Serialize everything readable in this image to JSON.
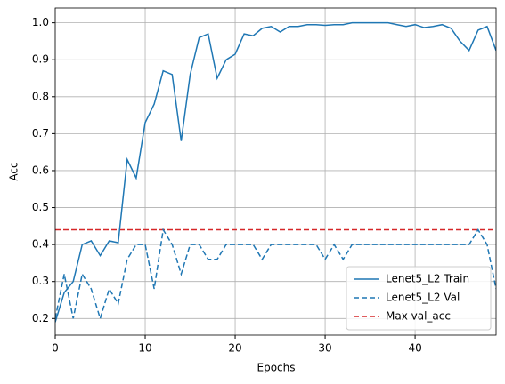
{
  "chart_data": {
    "type": "line",
    "xlabel": "Epochs",
    "ylabel": "Acc",
    "x": [
      0,
      1,
      2,
      3,
      4,
      5,
      6,
      7,
      8,
      9,
      10,
      11,
      12,
      13,
      14,
      15,
      16,
      17,
      18,
      19,
      20,
      21,
      22,
      23,
      24,
      25,
      26,
      27,
      28,
      29,
      30,
      31,
      32,
      33,
      34,
      35,
      36,
      37,
      38,
      39,
      40,
      41,
      42,
      43,
      44,
      45,
      46,
      47,
      48,
      49
    ],
    "series": [
      {
        "name": "Lenet5_L2 Train",
        "color": "#1f77b4",
        "dash": "solid",
        "values": [
          0.19,
          0.27,
          0.3,
          0.4,
          0.41,
          0.37,
          0.41,
          0.405,
          0.63,
          0.58,
          0.73,
          0.78,
          0.87,
          0.86,
          0.68,
          0.86,
          0.96,
          0.97,
          0.85,
          0.9,
          0.915,
          0.97,
          0.965,
          0.985,
          0.99,
          0.975,
          0.99,
          0.99,
          0.995,
          0.995,
          0.993,
          0.995,
          0.995,
          1.0,
          1.0,
          1.0,
          1.0,
          1.0,
          0.995,
          0.99,
          0.995,
          0.987,
          0.99,
          0.995,
          0.985,
          0.95,
          0.925,
          0.98,
          0.99,
          0.925
        ]
      },
      {
        "name": "Lenet5_L2 Val",
        "color": "#1f77b4",
        "dash": "dashed",
        "values": [
          0.2,
          0.32,
          0.2,
          0.32,
          0.28,
          0.2,
          0.28,
          0.24,
          0.36,
          0.4,
          0.4,
          0.28,
          0.44,
          0.4,
          0.32,
          0.4,
          0.4,
          0.36,
          0.36,
          0.4,
          0.4,
          0.4,
          0.4,
          0.36,
          0.4,
          0.4,
          0.4,
          0.4,
          0.4,
          0.4,
          0.36,
          0.4,
          0.36,
          0.4,
          0.4,
          0.4,
          0.4,
          0.4,
          0.4,
          0.4,
          0.4,
          0.4,
          0.4,
          0.4,
          0.4,
          0.4,
          0.4,
          0.44,
          0.4,
          0.28
        ]
      }
    ],
    "hlines": [
      {
        "name": "Max val_acc",
        "color": "#d62728",
        "dash": "dashed",
        "value": 0.44
      }
    ],
    "xlim": [
      0,
      49
    ],
    "xticks": [
      0,
      10,
      20,
      30,
      40
    ],
    "ylim": [
      0.155,
      1.04
    ],
    "yticks": [
      {
        "value": 0.2,
        "label": "0.2"
      },
      {
        "value": 0.3,
        "label": "0.3"
      },
      {
        "value": 0.4,
        "label": "0.4"
      },
      {
        "value": 0.5,
        "label": "0.5"
      },
      {
        "value": 0.6,
        "label": "0.6"
      },
      {
        "value": 0.7,
        "label": "0.7"
      },
      {
        "value": 0.8,
        "label": "0.8"
      },
      {
        "value": 0.9,
        "label": "0.9"
      },
      {
        "value": 1.0,
        "label": "1.0"
      }
    ],
    "grid": true,
    "legend": "lower right"
  }
}
